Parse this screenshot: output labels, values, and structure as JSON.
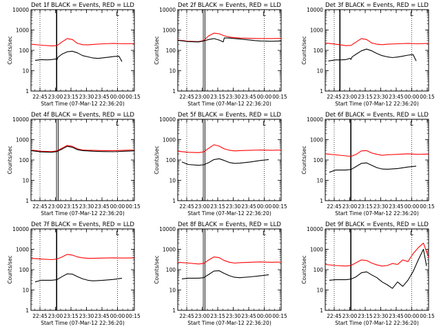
{
  "chart_data": {
    "type": "line",
    "layout": "3x3 grid",
    "ylabel": "Counts/sec",
    "xlabel": "Start Time (07-Mar-12 22:36:20)",
    "x_tick_labels": [
      "22:45",
      "23:00",
      "23:15",
      "23:30",
      "23:45",
      "00:00",
      "00:15"
    ],
    "y_tick_labels": [
      "1",
      "10",
      "100",
      "1000",
      "10000"
    ],
    "ylim": [
      1,
      10000
    ],
    "x_unit": "minutes after 22:36:20",
    "xlim": [
      0,
      100
    ],
    "x_ticks": [
      8.67,
      23.67,
      38.67,
      53.67,
      68.67,
      83.67,
      98.67
    ],
    "series_colors": {
      "Events": "#000000",
      "LLD": "#ff0000"
    },
    "corner_marker": "L",
    "panels": [
      {
        "title": "Det 1f BLACK = Events, RED = LLD",
        "markers": {
          "dotted": [
            8.67,
            83.67
          ],
          "solid": [
            24.8
          ],
          "double": []
        },
        "series": [
          {
            "name": "LLD",
            "color": "#ff0000",
            "x": [
              0,
              10,
              20,
              25,
              30,
              35,
              40,
              45,
              50,
              55,
              60,
              70,
              80,
              90,
              100
            ],
            "y": [
              200,
              180,
              165,
              170,
              260,
              380,
              340,
              220,
              190,
              185,
              195,
              210,
              220,
              210,
              215
            ]
          },
          {
            "name": "Events",
            "color": "#000000",
            "x": [
              4,
              10,
              15,
              20,
              24,
              25,
              26,
              30,
              35,
              40,
              45,
              50,
              55,
              60,
              65,
              70,
              75,
              80,
              85,
              88
            ],
            "y": [
              32,
              35,
              34,
              35,
              38,
              33,
              45,
              65,
              85,
              90,
              75,
              55,
              48,
              42,
              40,
              43,
              46,
              50,
              52,
              28
            ]
          }
        ]
      },
      {
        "title": "Det 2f BLACK = Events, RED = LLD",
        "markers": {
          "dotted": [
            8.67,
            83.67
          ],
          "solid": [],
          "double": [
            24.7,
            26.3
          ]
        },
        "series": [
          {
            "name": "LLD",
            "color": "#ff0000",
            "x": [
              0,
              10,
              20,
              25,
              30,
              35,
              40,
              45,
              50,
              55,
              60,
              70,
              80,
              90,
              100
            ],
            "y": [
              320,
              280,
              270,
              300,
              520,
              700,
              650,
              520,
              450,
              420,
              400,
              390,
              380,
              380,
              385
            ]
          },
          {
            "name": "Events",
            "color": "#000000",
            "x": [
              0,
              10,
              20,
              25,
              30,
              35,
              40,
              44,
              45,
              50,
              55,
              60,
              65,
              70,
              75,
              80,
              90,
              100
            ],
            "y": [
              310,
              270,
              260,
              290,
              340,
              380,
              320,
              260,
              410,
              400,
              380,
              360,
              340,
              320,
              300,
              290,
              280,
              290
            ]
          }
        ]
      },
      {
        "title": "Det 3f BLACK = Events, RED = LLD",
        "markers": {
          "dotted": [
            8.67,
            83.67
          ],
          "solid": [
            14.2
          ],
          "double": []
        },
        "series": [
          {
            "name": "LLD",
            "color": "#ff0000",
            "x": [
              0,
              10,
              20,
              25,
              30,
              35,
              40,
              45,
              50,
              55,
              60,
              70,
              80,
              90,
              100
            ],
            "y": [
              230,
              200,
              170,
              175,
              260,
              380,
              340,
              230,
              200,
              190,
              200,
              210,
              220,
              210,
              220
            ]
          },
          {
            "name": "Events",
            "color": "#000000",
            "x": [
              3,
              10,
              15,
              20,
              24,
              25,
              26,
              30,
              35,
              40,
              45,
              50,
              55,
              60,
              65,
              70,
              75,
              80,
              85,
              88
            ],
            "y": [
              30,
              34,
              34,
              35,
              40,
              36,
              48,
              65,
              95,
              115,
              95,
              70,
              55,
              48,
              44,
              47,
              52,
              58,
              62,
              30
            ]
          }
        ]
      },
      {
        "title": "Det 4f BLACK = Events, RED = LLD",
        "markers": {
          "dotted": [
            8.67,
            83.67
          ],
          "solid": [],
          "double": [
            24.7,
            26.3
          ]
        },
        "series": [
          {
            "name": "LLD",
            "color": "#ff0000",
            "x": [
              0,
              10,
              20,
              25,
              30,
              35,
              40,
              45,
              50,
              55,
              60,
              70,
              80,
              90,
              100
            ],
            "y": [
              310,
              270,
              260,
              280,
              380,
              520,
              470,
              350,
              310,
              300,
              300,
              290,
              290,
              300,
              310
            ]
          },
          {
            "name": "Events",
            "color": "#000000",
            "x": [
              0,
              10,
              20,
              25,
              30,
              35,
              40,
              45,
              50,
              55,
              60,
              70,
              80,
              90,
              100
            ],
            "y": [
              290,
              250,
              240,
              260,
              340,
              470,
              420,
              320,
              290,
              280,
              270,
              260,
              255,
              270,
              280
            ]
          }
        ]
      },
      {
        "title": "Det 5f BLACK = Events, RED = LLD",
        "markers": {
          "dotted": [
            8.67,
            83.67
          ],
          "solid": [],
          "double": [
            24.7,
            26.3
          ]
        },
        "series": [
          {
            "name": "LLD",
            "color": "#ff0000",
            "x": [
              0,
              10,
              20,
              25,
              30,
              35,
              40,
              45,
              50,
              55,
              60,
              70,
              80,
              90,
              100
            ],
            "y": [
              270,
              240,
              230,
              250,
              380,
              560,
              480,
              350,
              300,
              280,
              290,
              300,
              310,
              300,
              310
            ]
          },
          {
            "name": "Events",
            "color": "#000000",
            "x": [
              4,
              10,
              20,
              25,
              30,
              35,
              40,
              45,
              50,
              55,
              60,
              70,
              80,
              88
            ],
            "y": [
              80,
              60,
              55,
              58,
              75,
              105,
              115,
              95,
              75,
              68,
              70,
              80,
              95,
              105
            ]
          }
        ]
      },
      {
        "title": "Det 6f BLACK = Events, RED = LLD",
        "markers": {
          "dotted": [
            8.67,
            83.67
          ],
          "solid": [
            24.8
          ],
          "double": []
        },
        "series": [
          {
            "name": "LLD",
            "color": "#ff0000",
            "x": [
              0,
              10,
              20,
              25,
              30,
              35,
              40,
              45,
              50,
              55,
              60,
              70,
              80,
              90,
              100
            ],
            "y": [
              200,
              180,
              160,
              150,
              190,
              280,
              290,
              220,
              190,
              170,
              180,
              190,
              200,
              190,
              195
            ]
          },
          {
            "name": "Events",
            "color": "#000000",
            "x": [
              4,
              10,
              20,
              25,
              30,
              35,
              40,
              45,
              50,
              55,
              60,
              70,
              80,
              88
            ],
            "y": [
              25,
              32,
              32,
              34,
              48,
              68,
              72,
              55,
              42,
              36,
              35,
              38,
              45,
              50
            ]
          }
        ]
      },
      {
        "title": "Det 7f BLACK = Events, RED = LLD",
        "markers": {
          "dotted": [
            8.67,
            83.67
          ],
          "solid": [
            24.8
          ],
          "double": []
        },
        "series": [
          {
            "name": "LLD",
            "color": "#ff0000",
            "x": [
              0,
              10,
              20,
              25,
              30,
              35,
              40,
              45,
              50,
              55,
              60,
              70,
              80,
              90,
              100
            ],
            "y": [
              360,
              330,
              310,
              330,
              420,
              560,
              520,
              420,
              380,
              360,
              360,
              370,
              380,
              370,
              380
            ]
          },
          {
            "name": "Events",
            "color": "#000000",
            "x": [
              4,
              10,
              20,
              25,
              30,
              35,
              40,
              45,
              50,
              55,
              60,
              70,
              80,
              88
            ],
            "y": [
              25,
              30,
              30,
              32,
              45,
              62,
              60,
              45,
              35,
              30,
              28,
              30,
              33,
              38
            ]
          }
        ]
      },
      {
        "title": "Det 8f BLACK = Events, RED = LLD",
        "markers": {
          "dotted": [
            8.67,
            83.67
          ],
          "solid": [],
          "double": [
            24.7,
            26.3
          ]
        },
        "series": [
          {
            "name": "LLD",
            "color": "#ff0000",
            "x": [
              0,
              10,
              20,
              25,
              30,
              35,
              40,
              45,
              50,
              55,
              60,
              70,
              80,
              90,
              100
            ],
            "y": [
              230,
              210,
              190,
              200,
              300,
              420,
              390,
              280,
              230,
              210,
              220,
              230,
              240,
              230,
              235
            ]
          },
          {
            "name": "Events",
            "color": "#000000",
            "x": [
              4,
              10,
              20,
              25,
              30,
              35,
              40,
              45,
              50,
              55,
              60,
              70,
              80,
              88
            ],
            "y": [
              35,
              38,
              38,
              40,
              58,
              85,
              88,
              65,
              50,
              42,
              40,
              44,
              50,
              56
            ]
          }
        ]
      },
      {
        "title": "Det 9f BLACK = Events, RED = LLD",
        "markers": {
          "dotted": [
            8.67,
            83.67
          ],
          "solid": [
            24.8
          ],
          "double": []
        },
        "series": [
          {
            "name": "LLD",
            "color": "#ff0000",
            "x": [
              0,
              10,
              20,
              25,
              30,
              35,
              40,
              45,
              50,
              55,
              60,
              65,
              70,
              75,
              80,
              85,
              90,
              95,
              100
            ],
            "y": [
              180,
              160,
              150,
              160,
              220,
              300,
              280,
              210,
              170,
              150,
              160,
              200,
              180,
              300,
              250,
              600,
              1200,
              2000,
              400
            ]
          },
          {
            "name": "Events",
            "color": "#000000",
            "x": [
              4,
              10,
              20,
              25,
              30,
              35,
              40,
              45,
              50,
              55,
              60,
              65,
              70,
              75,
              80,
              85,
              90,
              95,
              98
            ],
            "y": [
              30,
              32,
              32,
              34,
              45,
              70,
              78,
              55,
              40,
              25,
              18,
              12,
              25,
              15,
              30,
              80,
              300,
              1000,
              150
            ]
          }
        ]
      }
    ]
  }
}
